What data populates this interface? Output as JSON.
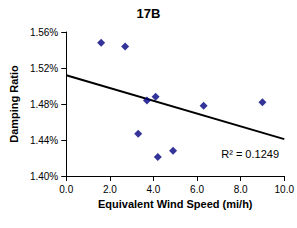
{
  "chart_data": {
    "type": "scatter",
    "title": "17B",
    "x_label": "Equivalent Wind Speed (mi/h)",
    "y_label": "Damping Ratio",
    "series": [
      {
        "type": "scatter",
        "color": "#000080",
        "marker": "diamond",
        "x": [
          1.6,
          2.7,
          3.3,
          3.7,
          4.1,
          4.2,
          4.9,
          6.3,
          9.0
        ],
        "values": [
          1.548,
          1.544,
          1.447,
          1.484,
          1.488,
          1.421,
          1.428,
          1.478,
          1.482
        ]
      },
      {
        "type": "line",
        "color": "#000000",
        "line_style": "solid",
        "x": [
          0,
          10
        ],
        "values": [
          1.512,
          1.441
        ]
      }
    ],
    "annotations": [
      "R² = 0.1249"
    ],
    "xlim": [
      0,
      10
    ],
    "xticks": [
      {
        "value": 0,
        "label": "0.0"
      },
      {
        "value": 2,
        "label": "2.0"
      },
      {
        "value": 4,
        "label": "4.0"
      },
      {
        "value": 6,
        "label": "6.0"
      },
      {
        "value": 8,
        "label": "8.0"
      },
      {
        "value": 10,
        "label": "10.0"
      }
    ],
    "ylim": [
      1.4,
      1.56
    ],
    "yticks": [
      {
        "value": 1.4,
        "label": "1.40%"
      },
      {
        "value": 1.44,
        "label": "1.44%"
      },
      {
        "value": 1.48,
        "label": "1.48%"
      },
      {
        "value": 1.52,
        "label": "1.52%"
      },
      {
        "value": 1.56,
        "label": "1.56%"
      }
    ],
    "grid": false
  }
}
